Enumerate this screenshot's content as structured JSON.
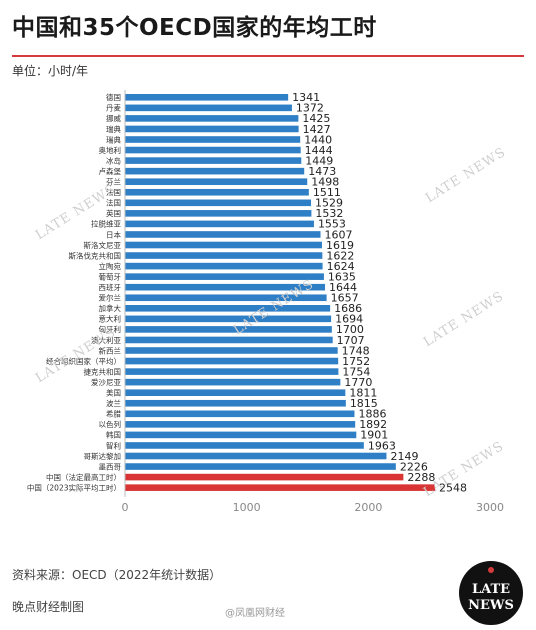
{
  "title": "中国和35个OECD国家的年均工时",
  "unit": "单位：小时/年",
  "source": "资料来源：OECD（2022年统计数据）",
  "credit": "晚点财经制图",
  "weibo": "@凤凰网财经",
  "logo": {
    "line1": "LATE",
    "line2": "NEWS"
  },
  "watermark": "LATE NEWS",
  "colors": {
    "bar": "#2f7fc6",
    "highlight": "#d93535",
    "accent": "#d63b3b"
  },
  "chart_data": {
    "type": "bar",
    "orientation": "horizontal",
    "categories": [
      "德国",
      "丹麦",
      "挪威",
      "瑞典",
      "瑞典",
      "奥地利",
      "冰岛",
      "卢森堡",
      "芬兰",
      "法国",
      "法国",
      "英国",
      "拉脱维亚",
      "日本",
      "斯洛文尼亚",
      "斯洛伐克共和国",
      "立陶宛",
      "葡萄牙",
      "西班牙",
      "爱尔兰",
      "加拿大",
      "意大利",
      "匈牙利",
      "澳大利亚",
      "新西兰",
      "经合组织国家（平均）",
      "捷克共和国",
      "爱沙尼亚",
      "美国",
      "波兰",
      "希腊",
      "以色列",
      "韩国",
      "智利",
      "哥斯达黎加",
      "墨西哥",
      "中国（法定最高工时）",
      "中国（2023实际平均工时）"
    ],
    "values": [
      1341,
      1372,
      1425,
      1427,
      1440,
      1444,
      1449,
      1473,
      1498,
      1511,
      1529,
      1532,
      1553,
      1607,
      1619,
      1622,
      1624,
      1635,
      1644,
      1657,
      1686,
      1694,
      1700,
      1707,
      1748,
      1752,
      1754,
      1770,
      1811,
      1815,
      1886,
      1892,
      1901,
      1963,
      2149,
      2226,
      2288,
      2548
    ],
    "highlight_indices": [
      36,
      37
    ],
    "xlim": [
      0,
      3000
    ],
    "xticks": [
      0,
      1000,
      2000,
      3000
    ],
    "grid": false,
    "legend": "none"
  }
}
